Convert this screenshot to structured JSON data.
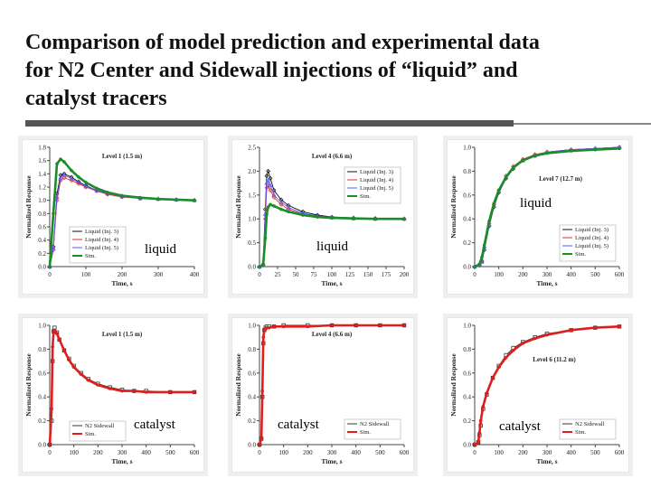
{
  "title": {
    "line1": "Comparison of model prediction and experimental data",
    "line2": "for N2 Center and Sidewall injections of “liquid” and",
    "line3": "catalyst tracers"
  },
  "tags": [
    "liquid",
    "liquid",
    "liquid",
    "catalyst",
    "catalyst",
    "catalyst"
  ],
  "chart_data": [
    {
      "type": "line",
      "annotation": "Level 1 (1.5 m)",
      "xlabel": "Time, s",
      "ylabel": "Normalized Response",
      "xlim": [
        0,
        400
      ],
      "ylim": [
        0,
        1.8
      ],
      "xticks": [
        0,
        100,
        200,
        300,
        400
      ],
      "yticks": [
        0.0,
        0.2,
        0.4,
        0.6,
        0.8,
        1.0,
        1.2,
        1.4,
        1.6,
        1.8
      ],
      "legend_position": "bottom-left",
      "series": [
        {
          "name": "Liquid (Inj. 3)",
          "color": "#111111",
          "marker": "diamond",
          "x": [
            0,
            10,
            20,
            30,
            40,
            60,
            80,
            100,
            130,
            160,
            200,
            250,
            300,
            350,
            400
          ],
          "y": [
            0,
            0.3,
            1.1,
            1.38,
            1.4,
            1.35,
            1.28,
            1.22,
            1.15,
            1.1,
            1.06,
            1.03,
            1.02,
            1.01,
            1.0
          ]
        },
        {
          "name": "Liquid (Inj. 4)",
          "color": "#e03030",
          "marker": "diamond",
          "x": [
            0,
            10,
            20,
            30,
            40,
            60,
            80,
            100,
            130,
            160,
            200,
            250,
            300,
            350,
            400
          ],
          "y": [
            0,
            0.25,
            1.0,
            1.3,
            1.34,
            1.3,
            1.25,
            1.2,
            1.14,
            1.09,
            1.05,
            1.03,
            1.02,
            1.01,
            1.0
          ]
        },
        {
          "name": "Liquid (Inj. 5)",
          "color": "#5a5aff",
          "marker": "triangle",
          "x": [
            0,
            10,
            20,
            30,
            40,
            60,
            80,
            100,
            130,
            160,
            200,
            250,
            300,
            350,
            400
          ],
          "y": [
            0,
            0.28,
            1.05,
            1.34,
            1.38,
            1.33,
            1.27,
            1.21,
            1.15,
            1.1,
            1.06,
            1.03,
            1.02,
            1.01,
            1.0
          ]
        },
        {
          "name": "Sim.",
          "color": "#1a8c2a",
          "marker": "dot",
          "x": [
            0,
            10,
            20,
            30,
            40,
            60,
            80,
            100,
            130,
            160,
            200,
            250,
            300,
            350,
            400
          ],
          "y": [
            0,
            0.8,
            1.55,
            1.62,
            1.58,
            1.45,
            1.35,
            1.27,
            1.18,
            1.12,
            1.07,
            1.04,
            1.02,
            1.01,
            1.0
          ]
        }
      ]
    },
    {
      "type": "line",
      "annotation": "Level 4 (6.6 m)",
      "xlabel": "Time, s",
      "ylabel": "Normalized Response",
      "xlim": [
        0,
        200
      ],
      "ylim": [
        0,
        2.5
      ],
      "xticks": [
        0,
        25,
        50,
        75,
        100,
        125,
        150,
        175,
        200
      ],
      "yticks": [
        0.0,
        0.5,
        1.0,
        1.5,
        2.0,
        2.5
      ],
      "legend_position": "top-right",
      "series": [
        {
          "name": "Liquid (Inj. 3)",
          "color": "#111111",
          "marker": "diamond",
          "x": [
            0,
            5,
            8,
            10,
            12,
            15,
            20,
            30,
            40,
            60,
            80,
            100,
            130,
            160,
            200
          ],
          "y": [
            0,
            0.05,
            1.2,
            1.9,
            2.0,
            1.85,
            1.6,
            1.4,
            1.28,
            1.15,
            1.08,
            1.04,
            1.02,
            1.01,
            1.0
          ]
        },
        {
          "name": "Liquid (Inj. 4)",
          "color": "#e03030",
          "marker": "diamond",
          "x": [
            0,
            5,
            8,
            10,
            12,
            15,
            20,
            30,
            40,
            60,
            80,
            100,
            130,
            160,
            200
          ],
          "y": [
            0,
            0.05,
            1.0,
            1.65,
            1.7,
            1.6,
            1.45,
            1.3,
            1.2,
            1.1,
            1.05,
            1.03,
            1.01,
            1.0,
            1.0
          ]
        },
        {
          "name": "Liquid (Inj. 5)",
          "color": "#5a5aff",
          "marker": "triangle",
          "x": [
            0,
            5,
            8,
            10,
            12,
            15,
            20,
            30,
            40,
            60,
            80,
            100,
            130,
            160,
            200
          ],
          "y": [
            0,
            0.05,
            1.1,
            1.75,
            1.8,
            1.7,
            1.5,
            1.35,
            1.24,
            1.12,
            1.06,
            1.03,
            1.01,
            1.0,
            1.0
          ]
        },
        {
          "name": "Sim.",
          "color": "#1a8c2a",
          "marker": "dot",
          "x": [
            0,
            5,
            8,
            10,
            12,
            15,
            20,
            30,
            40,
            60,
            80,
            100,
            130,
            160,
            200
          ],
          "y": [
            0,
            0.02,
            0.6,
            1.1,
            1.25,
            1.3,
            1.27,
            1.2,
            1.15,
            1.08,
            1.04,
            1.02,
            1.01,
            1.0,
            1.0
          ]
        }
      ]
    },
    {
      "type": "line",
      "annotation": "Level 7 (12.7 m)",
      "xlabel": "Time, s",
      "ylabel": "Normalized Response",
      "xlim": [
        0,
        600
      ],
      "ylim": [
        0,
        1.0
      ],
      "xticks": [
        0,
        100,
        200,
        300,
        400,
        500,
        600
      ],
      "yticks": [
        0.0,
        0.2,
        0.4,
        0.6,
        0.8,
        1.0
      ],
      "legend_position": "bottom-right",
      "series": [
        {
          "name": "Liquid (Inj. 3)",
          "color": "#111111",
          "marker": "diamond",
          "x": [
            0,
            20,
            30,
            40,
            60,
            80,
            100,
            130,
            160,
            200,
            250,
            300,
            400,
            500,
            600
          ],
          "y": [
            0,
            0.01,
            0.04,
            0.14,
            0.34,
            0.5,
            0.62,
            0.74,
            0.82,
            0.89,
            0.93,
            0.96,
            0.98,
            0.99,
            1.0
          ]
        },
        {
          "name": "Liquid (Inj. 4)",
          "color": "#e03030",
          "marker": "diamond",
          "x": [
            0,
            20,
            30,
            40,
            60,
            80,
            100,
            130,
            160,
            200,
            250,
            300,
            400,
            500,
            600
          ],
          "y": [
            0,
            0.01,
            0.05,
            0.16,
            0.36,
            0.52,
            0.64,
            0.76,
            0.84,
            0.9,
            0.94,
            0.96,
            0.98,
            0.99,
            1.0
          ]
        },
        {
          "name": "Liquid (Inj. 5)",
          "color": "#5a5aff",
          "marker": "triangle",
          "x": [
            0,
            20,
            30,
            40,
            60,
            80,
            100,
            130,
            160,
            200,
            250,
            300,
            400,
            500,
            600
          ],
          "y": [
            0,
            0.01,
            0.04,
            0.15,
            0.35,
            0.51,
            0.63,
            0.75,
            0.83,
            0.89,
            0.93,
            0.96,
            0.98,
            0.99,
            1.0
          ]
        },
        {
          "name": "Sim.",
          "color": "#1a8c2a",
          "marker": "dot",
          "x": [
            0,
            20,
            30,
            40,
            60,
            80,
            100,
            130,
            160,
            200,
            250,
            300,
            400,
            500,
            600
          ],
          "y": [
            0,
            0.02,
            0.08,
            0.18,
            0.38,
            0.53,
            0.64,
            0.75,
            0.83,
            0.89,
            0.93,
            0.95,
            0.97,
            0.98,
            0.99
          ]
        }
      ]
    },
    {
      "type": "line",
      "annotation": "Level 1 (1.5 m)",
      "xlabel": "Time, s",
      "ylabel": "Normalized Response",
      "xlim": [
        0,
        600
      ],
      "ylim": [
        0,
        1.0
      ],
      "xticks": [
        0,
        100,
        200,
        300,
        400,
        500,
        600
      ],
      "yticks": [
        0.0,
        0.2,
        0.4,
        0.6,
        0.8,
        1.0
      ],
      "legend_position": "bottom-left",
      "series": [
        {
          "name": "N2 Sidewall",
          "color": "#333333",
          "marker": "square",
          "x": [
            0,
            8,
            12,
            16,
            20,
            30,
            40,
            60,
            80,
            100,
            130,
            160,
            200,
            250,
            300,
            350,
            400,
            500,
            600
          ],
          "y": [
            0,
            0.2,
            0.7,
            0.95,
            0.98,
            0.94,
            0.88,
            0.79,
            0.72,
            0.66,
            0.6,
            0.55,
            0.51,
            0.48,
            0.46,
            0.45,
            0.45,
            0.44,
            0.44
          ]
        },
        {
          "name": "Sim.",
          "color": "#dd1f1f",
          "marker": "dot",
          "x": [
            0,
            8,
            12,
            16,
            20,
            30,
            40,
            60,
            80,
            100,
            130,
            160,
            200,
            250,
            300,
            350,
            400,
            500,
            600
          ],
          "y": [
            0,
            0.3,
            0.82,
            0.95,
            0.96,
            0.93,
            0.88,
            0.79,
            0.71,
            0.65,
            0.59,
            0.54,
            0.5,
            0.47,
            0.45,
            0.45,
            0.44,
            0.44,
            0.44
          ]
        }
      ]
    },
    {
      "type": "line",
      "annotation": "Level 4 (6.6 m)",
      "xlabel": "Time, s",
      "ylabel": "Normalized Response",
      "xlim": [
        0,
        600
      ],
      "ylim": [
        0,
        1.0
      ],
      "xticks": [
        0,
        100,
        200,
        300,
        400,
        500,
        600
      ],
      "yticks": [
        0.0,
        0.2,
        0.4,
        0.6,
        0.8,
        1.0
      ],
      "legend_position": "bottom-right",
      "series": [
        {
          "name": "N2 Sidewall",
          "color": "#333333",
          "marker": "square",
          "x": [
            0,
            8,
            12,
            16,
            20,
            25,
            30,
            40,
            60,
            100,
            200,
            300,
            400,
            500,
            600
          ],
          "y": [
            0,
            0.05,
            0.4,
            0.85,
            0.96,
            0.98,
            0.99,
            0.99,
            0.99,
            1.0,
            1.0,
            1.0,
            1.0,
            1.0,
            1.0
          ]
        },
        {
          "name": "Sim.",
          "color": "#dd1f1f",
          "marker": "dot",
          "x": [
            0,
            8,
            12,
            16,
            20,
            25,
            30,
            40,
            60,
            100,
            200,
            300,
            400,
            500,
            600
          ],
          "y": [
            0,
            0.05,
            0.45,
            0.9,
            0.96,
            0.97,
            0.98,
            0.98,
            0.99,
            0.99,
            0.99,
            1.0,
            1.0,
            1.0,
            1.0
          ]
        }
      ]
    },
    {
      "type": "line",
      "annotation": "Level 6 (11.2 m)",
      "xlabel": "Time, s",
      "ylabel": "Normalized Response",
      "xlim": [
        0,
        600
      ],
      "ylim": [
        0,
        1.0
      ],
      "xticks": [
        0,
        100,
        200,
        300,
        400,
        500,
        600
      ],
      "yticks": [
        0.0,
        0.2,
        0.4,
        0.6,
        0.8,
        1.0
      ],
      "legend_position": "bottom-right",
      "series": [
        {
          "name": "N2 Sidewall",
          "color": "#333333",
          "marker": "square",
          "x": [
            0,
            15,
            20,
            25,
            35,
            50,
            75,
            100,
            130,
            160,
            200,
            250,
            300,
            400,
            500,
            600
          ],
          "y": [
            0,
            0.02,
            0.08,
            0.16,
            0.3,
            0.42,
            0.56,
            0.66,
            0.75,
            0.81,
            0.86,
            0.9,
            0.93,
            0.96,
            0.98,
            0.99
          ]
        },
        {
          "name": "Sim.",
          "color": "#dd1f1f",
          "marker": "dot",
          "x": [
            0,
            15,
            20,
            25,
            35,
            50,
            75,
            100,
            130,
            160,
            200,
            250,
            300,
            400,
            500,
            600
          ],
          "y": [
            0,
            0.02,
            0.1,
            0.2,
            0.32,
            0.43,
            0.56,
            0.65,
            0.73,
            0.79,
            0.85,
            0.89,
            0.92,
            0.96,
            0.98,
            0.99
          ]
        }
      ]
    }
  ]
}
